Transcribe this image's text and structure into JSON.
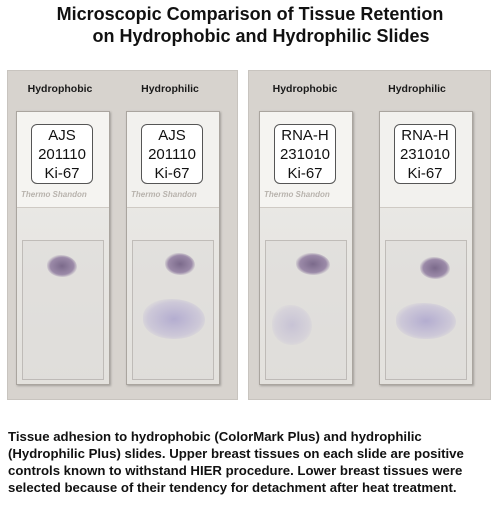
{
  "title": {
    "line1": "Microscopic Comparison of Tissue Retention",
    "line2": "on Hydrophobic and Hydrophilic Slides"
  },
  "panels": [
    {
      "slides": [
        {
          "type_label": "Hydrophobic",
          "label_lines": [
            "AJS",
            "201110",
            "Ki-67"
          ],
          "brand": "Thermo Shandon"
        },
        {
          "type_label": "Hydrophilic",
          "label_lines": [
            "AJS",
            "201110",
            "Ki-67"
          ],
          "brand": "Thermo Shandon"
        }
      ]
    },
    {
      "slides": [
        {
          "type_label": "Hydrophobic",
          "label_lines": [
            "RNA-H",
            "231010",
            "Ki-67"
          ],
          "brand": "Thermo Shandon"
        },
        {
          "type_label": "Hydrophilic",
          "label_lines": [
            "RNA-H",
            "231010",
            "Ki-67"
          ],
          "brand": ""
        }
      ]
    }
  ],
  "caption": "Tissue adhesion to hydrophobic (ColorMark Plus) and hydrophilic (Hydrophilic Plus) slides. Upper breast tissues on each slide are positive controls known to withstand HIER procedure. Lower breast tissues were selected because of their tendency for detachment after heat treatment.",
  "colors": {
    "background": "#ffffff",
    "photo_background": "#d7d3ce",
    "tissue_stain": "#7b6a8b"
  }
}
